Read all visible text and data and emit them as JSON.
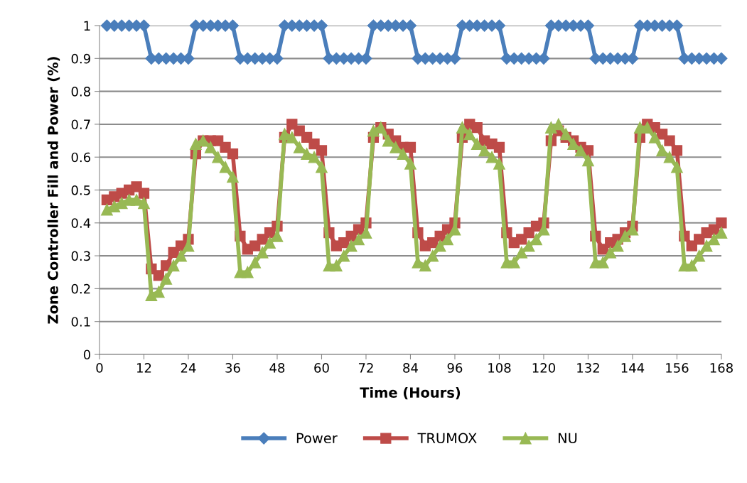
{
  "chart_data": {
    "type": "line",
    "xlabel": "Time (Hours)",
    "ylabel": "Zone Controller Fill and Power (%)",
    "x": [
      2,
      4,
      6,
      8,
      10,
      12,
      14,
      16,
      18,
      20,
      22,
      24,
      26,
      28,
      30,
      32,
      34,
      36,
      38,
      40,
      42,
      44,
      46,
      48,
      50,
      52,
      54,
      56,
      58,
      60,
      62,
      64,
      66,
      68,
      70,
      72,
      74,
      76,
      78,
      80,
      82,
      84,
      86,
      88,
      90,
      92,
      94,
      96,
      98,
      100,
      102,
      104,
      106,
      108,
      110,
      112,
      114,
      116,
      118,
      120,
      122,
      124,
      126,
      128,
      130,
      132,
      134,
      136,
      138,
      140,
      142,
      144,
      146,
      148,
      150,
      152,
      154,
      156,
      158,
      160,
      162,
      164,
      166,
      168
    ],
    "series": [
      {
        "name": "Power",
        "color": "#4a7ebb",
        "marker": "diamond",
        "values": [
          1,
          1,
          1,
          1,
          1,
          1,
          0.9,
          0.9,
          0.9,
          0.9,
          0.9,
          0.9,
          1,
          1,
          1,
          1,
          1,
          1,
          0.9,
          0.9,
          0.9,
          0.9,
          0.9,
          0.9,
          1,
          1,
          1,
          1,
          1,
          1,
          0.9,
          0.9,
          0.9,
          0.9,
          0.9,
          0.9,
          1,
          1,
          1,
          1,
          1,
          1,
          0.9,
          0.9,
          0.9,
          0.9,
          0.9,
          0.9,
          1,
          1,
          1,
          1,
          1,
          1,
          0.9,
          0.9,
          0.9,
          0.9,
          0.9,
          0.9,
          1,
          1,
          1,
          1,
          1,
          1,
          0.9,
          0.9,
          0.9,
          0.9,
          0.9,
          0.9,
          1,
          1,
          1,
          1,
          1,
          1,
          0.9,
          0.9,
          0.9,
          0.9,
          0.9,
          0.9
        ]
      },
      {
        "name": "TRUMOX",
        "color": "#be4b48",
        "marker": "square",
        "values": [
          0.47,
          0.48,
          0.49,
          0.5,
          0.51,
          0.49,
          0.26,
          0.24,
          0.27,
          0.31,
          0.33,
          0.35,
          0.61,
          0.65,
          0.65,
          0.65,
          0.63,
          0.61,
          0.36,
          0.32,
          0.33,
          0.35,
          0.37,
          0.39,
          0.66,
          0.7,
          0.68,
          0.66,
          0.64,
          0.62,
          0.37,
          0.33,
          0.34,
          0.36,
          0.38,
          0.4,
          0.66,
          0.69,
          0.67,
          0.65,
          0.63,
          0.63,
          0.37,
          0.33,
          0.34,
          0.36,
          0.38,
          0.4,
          0.66,
          0.7,
          0.69,
          0.65,
          0.64,
          0.63,
          0.37,
          0.34,
          0.35,
          0.37,
          0.39,
          0.4,
          0.65,
          0.68,
          0.66,
          0.65,
          0.63,
          0.62,
          0.36,
          0.32,
          0.34,
          0.35,
          0.37,
          0.39,
          0.66,
          0.7,
          0.69,
          0.67,
          0.65,
          0.62,
          0.36,
          0.33,
          0.35,
          0.37,
          0.38,
          0.4
        ]
      },
      {
        "name": "NU",
        "color": "#98b954",
        "marker": "triangle",
        "values": [
          0.44,
          0.45,
          0.46,
          0.47,
          0.47,
          0.46,
          0.18,
          0.19,
          0.23,
          0.27,
          0.3,
          0.33,
          0.64,
          0.65,
          0.63,
          0.6,
          0.57,
          0.54,
          0.25,
          0.25,
          0.28,
          0.31,
          0.34,
          0.36,
          0.67,
          0.66,
          0.63,
          0.61,
          0.6,
          0.57,
          0.27,
          0.27,
          0.3,
          0.33,
          0.35,
          0.37,
          0.68,
          0.69,
          0.65,
          0.63,
          0.61,
          0.58,
          0.28,
          0.27,
          0.3,
          0.33,
          0.35,
          0.38,
          0.69,
          0.67,
          0.64,
          0.62,
          0.6,
          0.58,
          0.28,
          0.28,
          0.31,
          0.33,
          0.35,
          0.38,
          0.69,
          0.7,
          0.67,
          0.64,
          0.62,
          0.59,
          0.28,
          0.28,
          0.31,
          0.33,
          0.36,
          0.38,
          0.69,
          0.69,
          0.66,
          0.62,
          0.6,
          0.57,
          0.27,
          0.27,
          0.3,
          0.33,
          0.35,
          0.37
        ]
      }
    ],
    "xlim": [
      0,
      168
    ],
    "xticks": [
      0,
      12,
      24,
      36,
      48,
      60,
      72,
      84,
      96,
      108,
      120,
      132,
      144,
      156,
      168
    ],
    "ylim": [
      0,
      1
    ],
    "yticks": [
      0,
      0.1,
      0.2,
      0.3,
      0.4,
      0.5,
      0.6,
      0.7,
      0.8,
      0.9,
      1
    ],
    "grid": "y",
    "legend": "bottom",
    "line_style": "solid"
  }
}
